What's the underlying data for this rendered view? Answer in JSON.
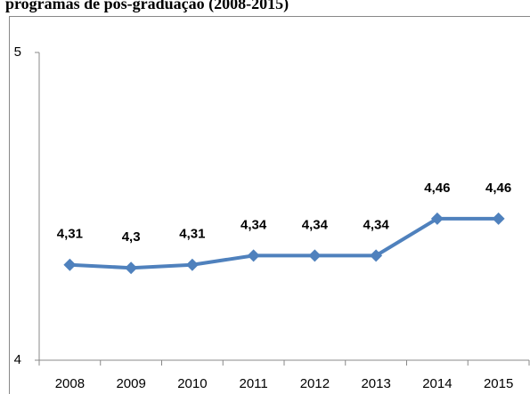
{
  "chart_data": {
    "type": "line",
    "title": "programas de pós-graduação (2008-2015)",
    "categories": [
      "2008",
      "2009",
      "2010",
      "2011",
      "2012",
      "2013",
      "2014",
      "2015"
    ],
    "series": [
      {
        "name": "",
        "color": "#4f81bd",
        "values": [
          4.31,
          4.3,
          4.31,
          4.34,
          4.34,
          4.34,
          4.46,
          4.46
        ],
        "value_labels": [
          "4,31",
          "4,3",
          "4,31",
          "4,34",
          "4,34",
          "4,34",
          "4,46",
          "4,46"
        ]
      }
    ],
    "ylim": [
      4,
      5
    ],
    "yticks": [
      4,
      5
    ],
    "grid": false
  }
}
